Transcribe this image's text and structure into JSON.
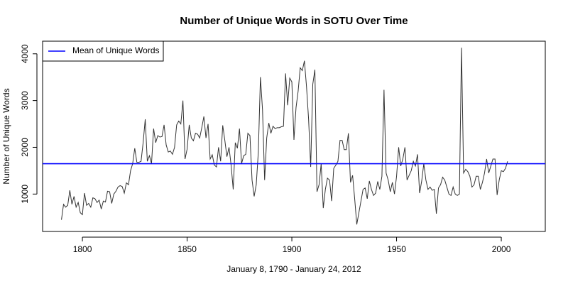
{
  "chart_data": {
    "type": "line",
    "title": "Number of Unique Words in SOTU Over Time",
    "x_label": "January 8, 1790 - January 24, 2012",
    "y_label": "Number of Unique Words",
    "x": [
      1790,
      1791,
      1792,
      1793,
      1794,
      1795,
      1796,
      1797,
      1798,
      1799,
      1800,
      1801,
      1802,
      1803,
      1804,
      1805,
      1806,
      1807,
      1808,
      1809,
      1810,
      1811,
      1812,
      1813,
      1814,
      1815,
      1816,
      1817,
      1818,
      1819,
      1820,
      1821,
      1822,
      1823,
      1824,
      1825,
      1826,
      1827,
      1828,
      1829,
      1830,
      1831,
      1832,
      1833,
      1834,
      1835,
      1836,
      1837,
      1838,
      1839,
      1840,
      1841,
      1842,
      1843,
      1844,
      1845,
      1846,
      1847,
      1848,
      1849,
      1850,
      1851,
      1852,
      1853,
      1854,
      1855,
      1856,
      1857,
      1858,
      1859,
      1860,
      1861,
      1862,
      1863,
      1864,
      1865,
      1866,
      1867,
      1868,
      1869,
      1870,
      1871,
      1872,
      1873,
      1874,
      1875,
      1876,
      1877,
      1878,
      1879,
      1880,
      1881,
      1882,
      1883,
      1884,
      1885,
      1886,
      1887,
      1888,
      1889,
      1890,
      1891,
      1892,
      1893,
      1894,
      1895,
      1896,
      1897,
      1898,
      1899,
      1900,
      1901,
      1902,
      1903,
      1904,
      1905,
      1906,
      1907,
      1908,
      1909,
      1910,
      1911,
      1912,
      1913,
      1914,
      1915,
      1916,
      1917,
      1918,
      1919,
      1920,
      1921,
      1922,
      1923,
      1924,
      1925,
      1926,
      1927,
      1928,
      1929,
      1930,
      1931,
      1932,
      1933,
      1934,
      1935,
      1936,
      1937,
      1938,
      1939,
      1940,
      1941,
      1942,
      1943,
      1944,
      1945,
      1946,
      1947,
      1948,
      1949,
      1950,
      1951,
      1952,
      1953,
      1954,
      1955,
      1956,
      1957,
      1958,
      1959,
      1960,
      1961,
      1962,
      1963,
      1964,
      1965,
      1966,
      1967,
      1968,
      1969,
      1970,
      1971,
      1972,
      1973,
      1974,
      1975,
      1976,
      1977,
      1978,
      1979,
      1980,
      1981,
      1982,
      1983,
      1984,
      1985,
      1986,
      1987,
      1988,
      1989,
      1990,
      1991,
      1992,
      1993,
      1994,
      1995,
      1996,
      1997,
      1998,
      1999,
      2000,
      2001,
      2002,
      2003
    ],
    "series": [
      {
        "color": "#333333",
        "values": [
          450,
          780,
          720,
          760,
          1080,
          780,
          950,
          720,
          820,
          600,
          560,
          1020,
          760,
          800,
          720,
          920,
          900,
          820,
          870,
          680,
          850,
          830,
          1060,
          1050,
          800,
          1000,
          1060,
          1150,
          1180,
          1160,
          1020,
          1240,
          1200,
          1500,
          1650,
          1980,
          1680,
          1680,
          1700,
          2100,
          2600,
          1700,
          1820,
          1650,
          2400,
          2100,
          2250,
          2220,
          2230,
          2480,
          2050,
          1900,
          1920,
          1850,
          2000,
          2480,
          2560,
          2500,
          3000,
          1750,
          1960,
          2480,
          2200,
          2140,
          2300,
          2280,
          2200,
          2420,
          2660,
          2200,
          2500,
          1750,
          1840,
          1620,
          1580,
          2000,
          1700,
          2470,
          2150,
          1800,
          2000,
          1620,
          1100,
          2100,
          1980,
          2400,
          1650,
          1820,
          1850,
          2300,
          2250,
          1300,
          950,
          1200,
          1900,
          3500,
          2800,
          1300,
          2200,
          2520,
          2300,
          2450,
          2400,
          2420,
          2420,
          2440,
          2450,
          3580,
          2900,
          3480,
          3400,
          2160,
          2850,
          3200,
          3700,
          3640,
          3850,
          3300,
          2600,
          1580,
          3350,
          3660,
          1050,
          1200,
          1650,
          700,
          1100,
          1340,
          1300,
          850,
          1550,
          1620,
          1700,
          2150,
          2150,
          1950,
          1950,
          2300,
          1250,
          1400,
          900,
          350,
          600,
          850,
          1100,
          1130,
          900,
          1280,
          1100,
          970,
          1020,
          1270,
          1100,
          1380,
          3230,
          1450,
          1300,
          1050,
          1250,
          1000,
          1380,
          2000,
          1600,
          1750,
          2000,
          1300,
          1400,
          1500,
          1700,
          1600,
          1850,
          1020,
          1280,
          1650,
          1300,
          1100,
          1150,
          1080,
          1100,
          580,
          1130,
          1200,
          1360,
          1300,
          1150,
          1000,
          970,
          1150,
          1000,
          970,
          1000,
          4130,
          1450,
          1530,
          1480,
          1380,
          1150,
          1200,
          1380,
          1380,
          1100,
          1250,
          1450,
          1750,
          1450,
          1600,
          1750,
          1750,
          980,
          1300,
          1500,
          1480,
          1550,
          1700
        ]
      }
    ],
    "hline": {
      "name": "Mean of Unique Words",
      "value": 1650,
      "color": "#0000ff"
    },
    "legend": "top-left",
    "xlim": [
      1781,
      2021
    ],
    "ylim": [
      200,
      4270
    ],
    "xticks": [
      1800,
      1850,
      1900,
      1950,
      2000
    ],
    "yticks": [
      1000,
      2000,
      3000,
      4000
    ]
  }
}
